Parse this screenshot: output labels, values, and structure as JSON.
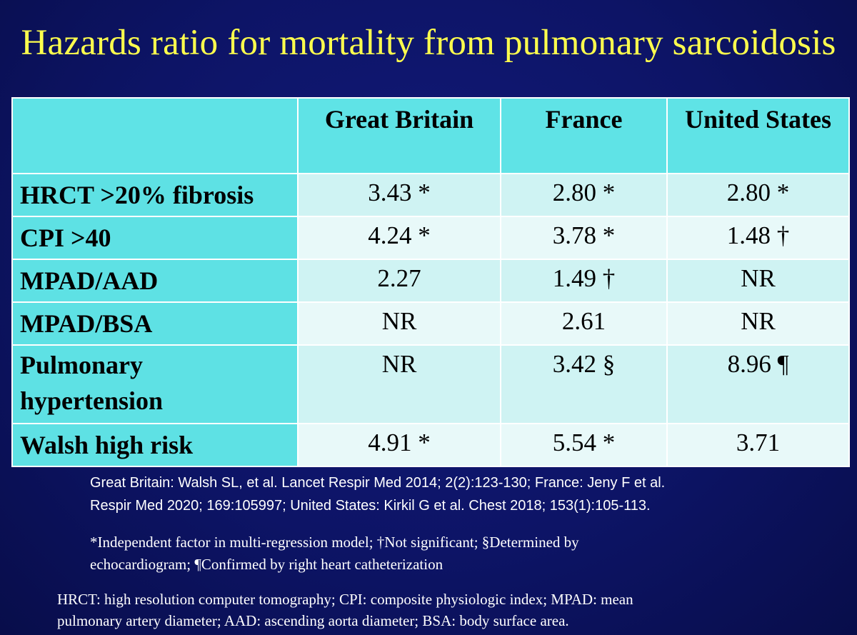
{
  "slide": {
    "title": "Hazards ratio for mortality from pulmonary sarcoidosis"
  },
  "table": {
    "headers": [
      "",
      "Great Britain",
      "France",
      "United States"
    ],
    "rows": [
      {
        "label": "HRCT >20% fibrosis",
        "values": [
          "3.43 *",
          "2.80 *",
          "2.80 *"
        ]
      },
      {
        "label": "CPI >40",
        "values": [
          "4.24 *",
          "3.78 *",
          "1.48 †"
        ]
      },
      {
        "label": "MPAD/AAD",
        "values": [
          "2.27",
          "1.49 †",
          "NR"
        ]
      },
      {
        "label": "MPAD/BSA",
        "values": [
          "NR",
          "2.61",
          "NR"
        ]
      },
      {
        "label": "Pulmonary hypertension",
        "label_lines": [
          "Pulmonary",
          "hypertension"
        ],
        "values": [
          "NR",
          "3.42 §",
          "8.96 ¶"
        ]
      },
      {
        "label": "Walsh high risk",
        "values": [
          "4.91 *",
          "5.54 *",
          "3.71"
        ]
      }
    ]
  },
  "references": {
    "lines": [
      "Great Britain: Walsh SL, et al. Lancet Respir Med 2014; 2(2):123-130;  France: Jeny F et al.",
      "Respir Med 2020; 169:105997; United States: Kirkil G et al. Chest 2018; 153(1):105-113."
    ]
  },
  "footnotes": {
    "lines": [
      "*Independent factor in multi-regression model; †Not significant; §Determined by",
      "echocardiogram; ¶Confirmed by right heart catheterization"
    ]
  },
  "abbreviations": {
    "lines": [
      "HRCT: high resolution computer tomography; CPI: composite physiologic index; MPAD: mean",
      "pulmonary artery diameter; AAD: ascending aorta diameter; BSA: body surface area."
    ]
  },
  "colors": {
    "background": "#0d1466",
    "title": "#ffff4d",
    "header_cell": "#5fe3e6",
    "row_label_cell": "#5ee1e4",
    "value_cell_odd": "#cff3f3",
    "value_cell_even": "#e8f9f9",
    "footer_text": "#ffffff"
  }
}
